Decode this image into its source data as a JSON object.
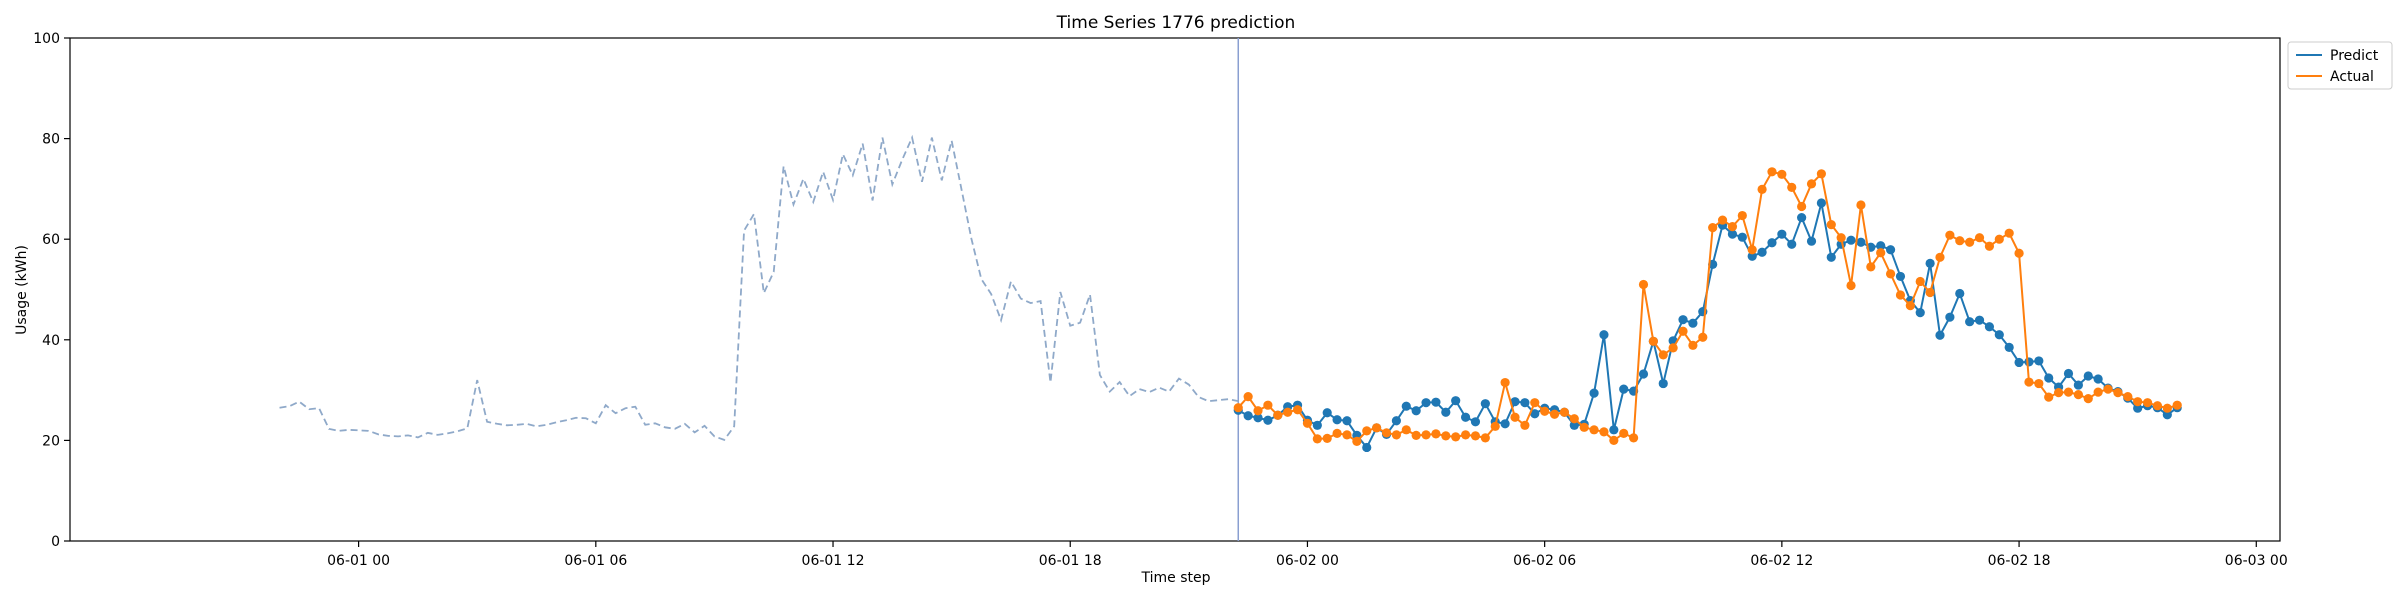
{
  "chart_data": {
    "type": "line",
    "title": "Time Series 1776 prediction",
    "xlabel": "Time step",
    "ylabel": "Usage (kWh)",
    "ylim": [
      0,
      100
    ],
    "yticks": [
      0,
      20,
      40,
      60,
      80,
      100
    ],
    "x_unit": "hours from 06-01 00:00",
    "xlim": [
      -7.3,
      48.6
    ],
    "xticks": [
      {
        "x": 0,
        "label": "06-01 00"
      },
      {
        "x": 6,
        "label": "06-01 06"
      },
      {
        "x": 12,
        "label": "06-01 12"
      },
      {
        "x": 18,
        "label": "06-01 18"
      },
      {
        "x": 24,
        "label": "06-02 00"
      },
      {
        "x": 30,
        "label": "06-02 06"
      },
      {
        "x": 36,
        "label": "06-02 12"
      },
      {
        "x": 42,
        "label": "06-02 18"
      },
      {
        "x": 48,
        "label": "06-03 00"
      }
    ],
    "forecast_start": 22.25,
    "step_hours": 0.25,
    "grid": false,
    "legend_position": "top-right",
    "history": {
      "style": "dashed",
      "color": "#8fa9c9",
      "x_start": -2.0,
      "step_hours": 0.25,
      "values": [
        26.5,
        26.8,
        27.7,
        26.2,
        26.4,
        22.3,
        21.9,
        22.1,
        22.0,
        21.9,
        21.2,
        20.9,
        20.8,
        21.0,
        20.6,
        21.5,
        21.1,
        21.4,
        21.8,
        22.4,
        32.0,
        23.7,
        23.3,
        23.0,
        23.1,
        23.3,
        22.8,
        23.1,
        23.6,
        24.0,
        24.5,
        24.4,
        23.4,
        27.0,
        25.4,
        26.4,
        26.7,
        23.1,
        23.4,
        22.6,
        22.3,
        23.3,
        21.6,
        22.9,
        20.8,
        20.1,
        22.8,
        61.7,
        65.0,
        49.3,
        53.5,
        74.5,
        66.9,
        72.0,
        67.4,
        73.4,
        67.8,
        76.9,
        72.7,
        79.0,
        67.7,
        80.2,
        70.9,
        75.8,
        80.2,
        71.4,
        80.2,
        71.7,
        79.6,
        69.9,
        60.1,
        52.1,
        49.1,
        43.9,
        51.6,
        48.2,
        47.3,
        47.7,
        31.5,
        49.5,
        42.8,
        43.4,
        49.0,
        33.0,
        29.7,
        31.6,
        28.8,
        30.2,
        29.6,
        30.5,
        29.7,
        32.3,
        31.1,
        28.6,
        27.8,
        28.0,
        28.2,
        27.8
      ]
    },
    "series": [
      {
        "name": "Predict",
        "color": "#1f77b4",
        "x_start": 22.25,
        "step_hours": 0.25,
        "values": [
          26.0,
          24.9,
          24.5,
          24.0,
          25.0,
          26.7,
          27.0,
          24.0,
          23.0,
          25.5,
          24.1,
          23.9,
          21.0,
          18.6,
          22.5,
          21.2,
          23.9,
          26.8,
          25.9,
          27.5,
          27.6,
          25.6,
          27.9,
          24.6,
          23.7,
          27.3,
          23.7,
          23.3,
          27.7,
          27.5,
          25.3,
          26.4,
          26.1,
          25.6,
          23.0,
          23.2,
          29.4,
          41.0,
          22.1,
          30.2,
          29.8,
          33.2,
          39.7,
          31.3,
          39.8,
          44.0,
          43.3,
          45.6,
          55.0,
          62.8,
          61.0,
          60.4,
          56.6,
          57.4,
          59.3,
          61.0,
          59.0,
          64.3,
          59.6,
          67.2,
          56.4,
          59.0,
          59.8,
          59.4,
          58.4,
          58.7,
          57.9,
          52.6,
          47.8,
          45.4,
          55.2,
          40.9,
          44.5,
          49.2,
          43.6,
          43.9,
          42.6,
          41.0,
          38.5,
          35.5,
          35.6,
          35.8,
          32.4,
          30.6,
          33.3,
          31.0,
          32.8,
          32.2,
          30.4,
          29.7,
          28.4,
          26.4,
          26.9,
          26.5,
          25.1,
          26.5
        ]
      },
      {
        "name": "Actual",
        "color": "#ff7f0e",
        "x_start": 22.25,
        "step_hours": 0.25,
        "values": [
          26.5,
          28.7,
          25.9,
          27.0,
          25.0,
          25.6,
          26.1,
          23.4,
          20.3,
          20.4,
          21.4,
          21.1,
          19.8,
          21.9,
          22.5,
          21.5,
          21.1,
          22.1,
          21.0,
          21.1,
          21.3,
          20.9,
          20.7,
          21.1,
          20.9,
          20.5,
          22.8,
          31.5,
          24.6,
          23.0,
          27.5,
          25.8,
          25.2,
          25.6,
          24.3,
          22.6,
          22.1,
          21.7,
          20.0,
          21.4,
          20.5,
          51.0,
          39.7,
          37.0,
          38.4,
          41.7,
          38.9,
          40.5,
          62.3,
          63.8,
          62.5,
          64.7,
          57.9,
          69.9,
          73.4,
          72.9,
          70.3,
          66.5,
          71.0,
          73.0,
          62.9,
          60.3,
          50.8,
          66.8,
          54.5,
          57.3,
          53.1,
          48.9,
          46.8,
          51.6,
          49.4,
          56.4,
          60.8,
          59.7,
          59.4,
          60.3,
          58.6,
          60.0,
          61.2,
          57.2,
          31.6,
          31.3,
          28.6,
          29.5,
          29.6,
          29.1,
          28.3,
          29.6,
          30.2,
          29.5,
          28.7,
          27.7,
          27.5,
          26.9,
          26.4,
          27.0
        ]
      }
    ]
  }
}
